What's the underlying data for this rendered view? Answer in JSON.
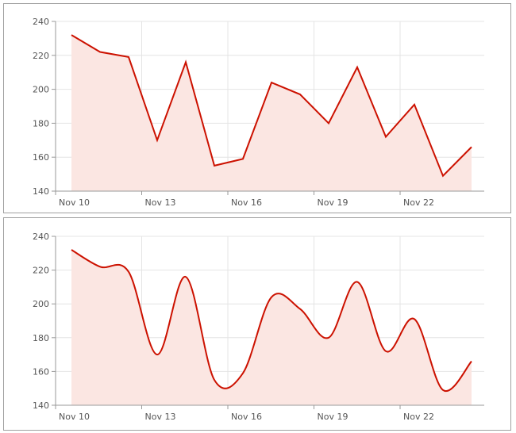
{
  "chart_data": [
    {
      "type": "area",
      "interpolation": "linear",
      "x": [
        "Nov 10",
        "Nov 11",
        "Nov 12",
        "Nov 13",
        "Nov 14",
        "Nov 15",
        "Nov 16",
        "Nov 17",
        "Nov 18",
        "Nov 19",
        "Nov 20",
        "Nov 21",
        "Nov 22",
        "Nov 23",
        "Nov 24"
      ],
      "values": [
        232,
        222,
        219,
        170,
        216,
        155,
        159,
        204,
        197,
        180,
        213,
        172,
        191,
        149,
        166
      ],
      "xticks": [
        "Nov 10",
        "Nov 13",
        "Nov 16",
        "Nov 19",
        "Nov 22"
      ],
      "yticks": [
        140,
        160,
        180,
        200,
        220,
        240
      ],
      "ylim": [
        140,
        240
      ],
      "grid": true,
      "line_color": "#cc1100",
      "fill_color": "#fbe6e2"
    },
    {
      "type": "area",
      "interpolation": "spline",
      "x": [
        "Nov 10",
        "Nov 11",
        "Nov 12",
        "Nov 13",
        "Nov 14",
        "Nov 15",
        "Nov 16",
        "Nov 17",
        "Nov 18",
        "Nov 19",
        "Nov 20",
        "Nov 21",
        "Nov 22",
        "Nov 23",
        "Nov 24"
      ],
      "values": [
        232,
        222,
        219,
        170,
        216,
        155,
        159,
        204,
        197,
        180,
        213,
        172,
        191,
        149,
        166
      ],
      "xticks": [
        "Nov 10",
        "Nov 13",
        "Nov 16",
        "Nov 19",
        "Nov 22"
      ],
      "yticks": [
        140,
        160,
        180,
        200,
        220,
        240
      ],
      "ylim": [
        140,
        240
      ],
      "grid": true,
      "line_color": "#cc1100",
      "fill_color": "#fbe6e2"
    }
  ]
}
